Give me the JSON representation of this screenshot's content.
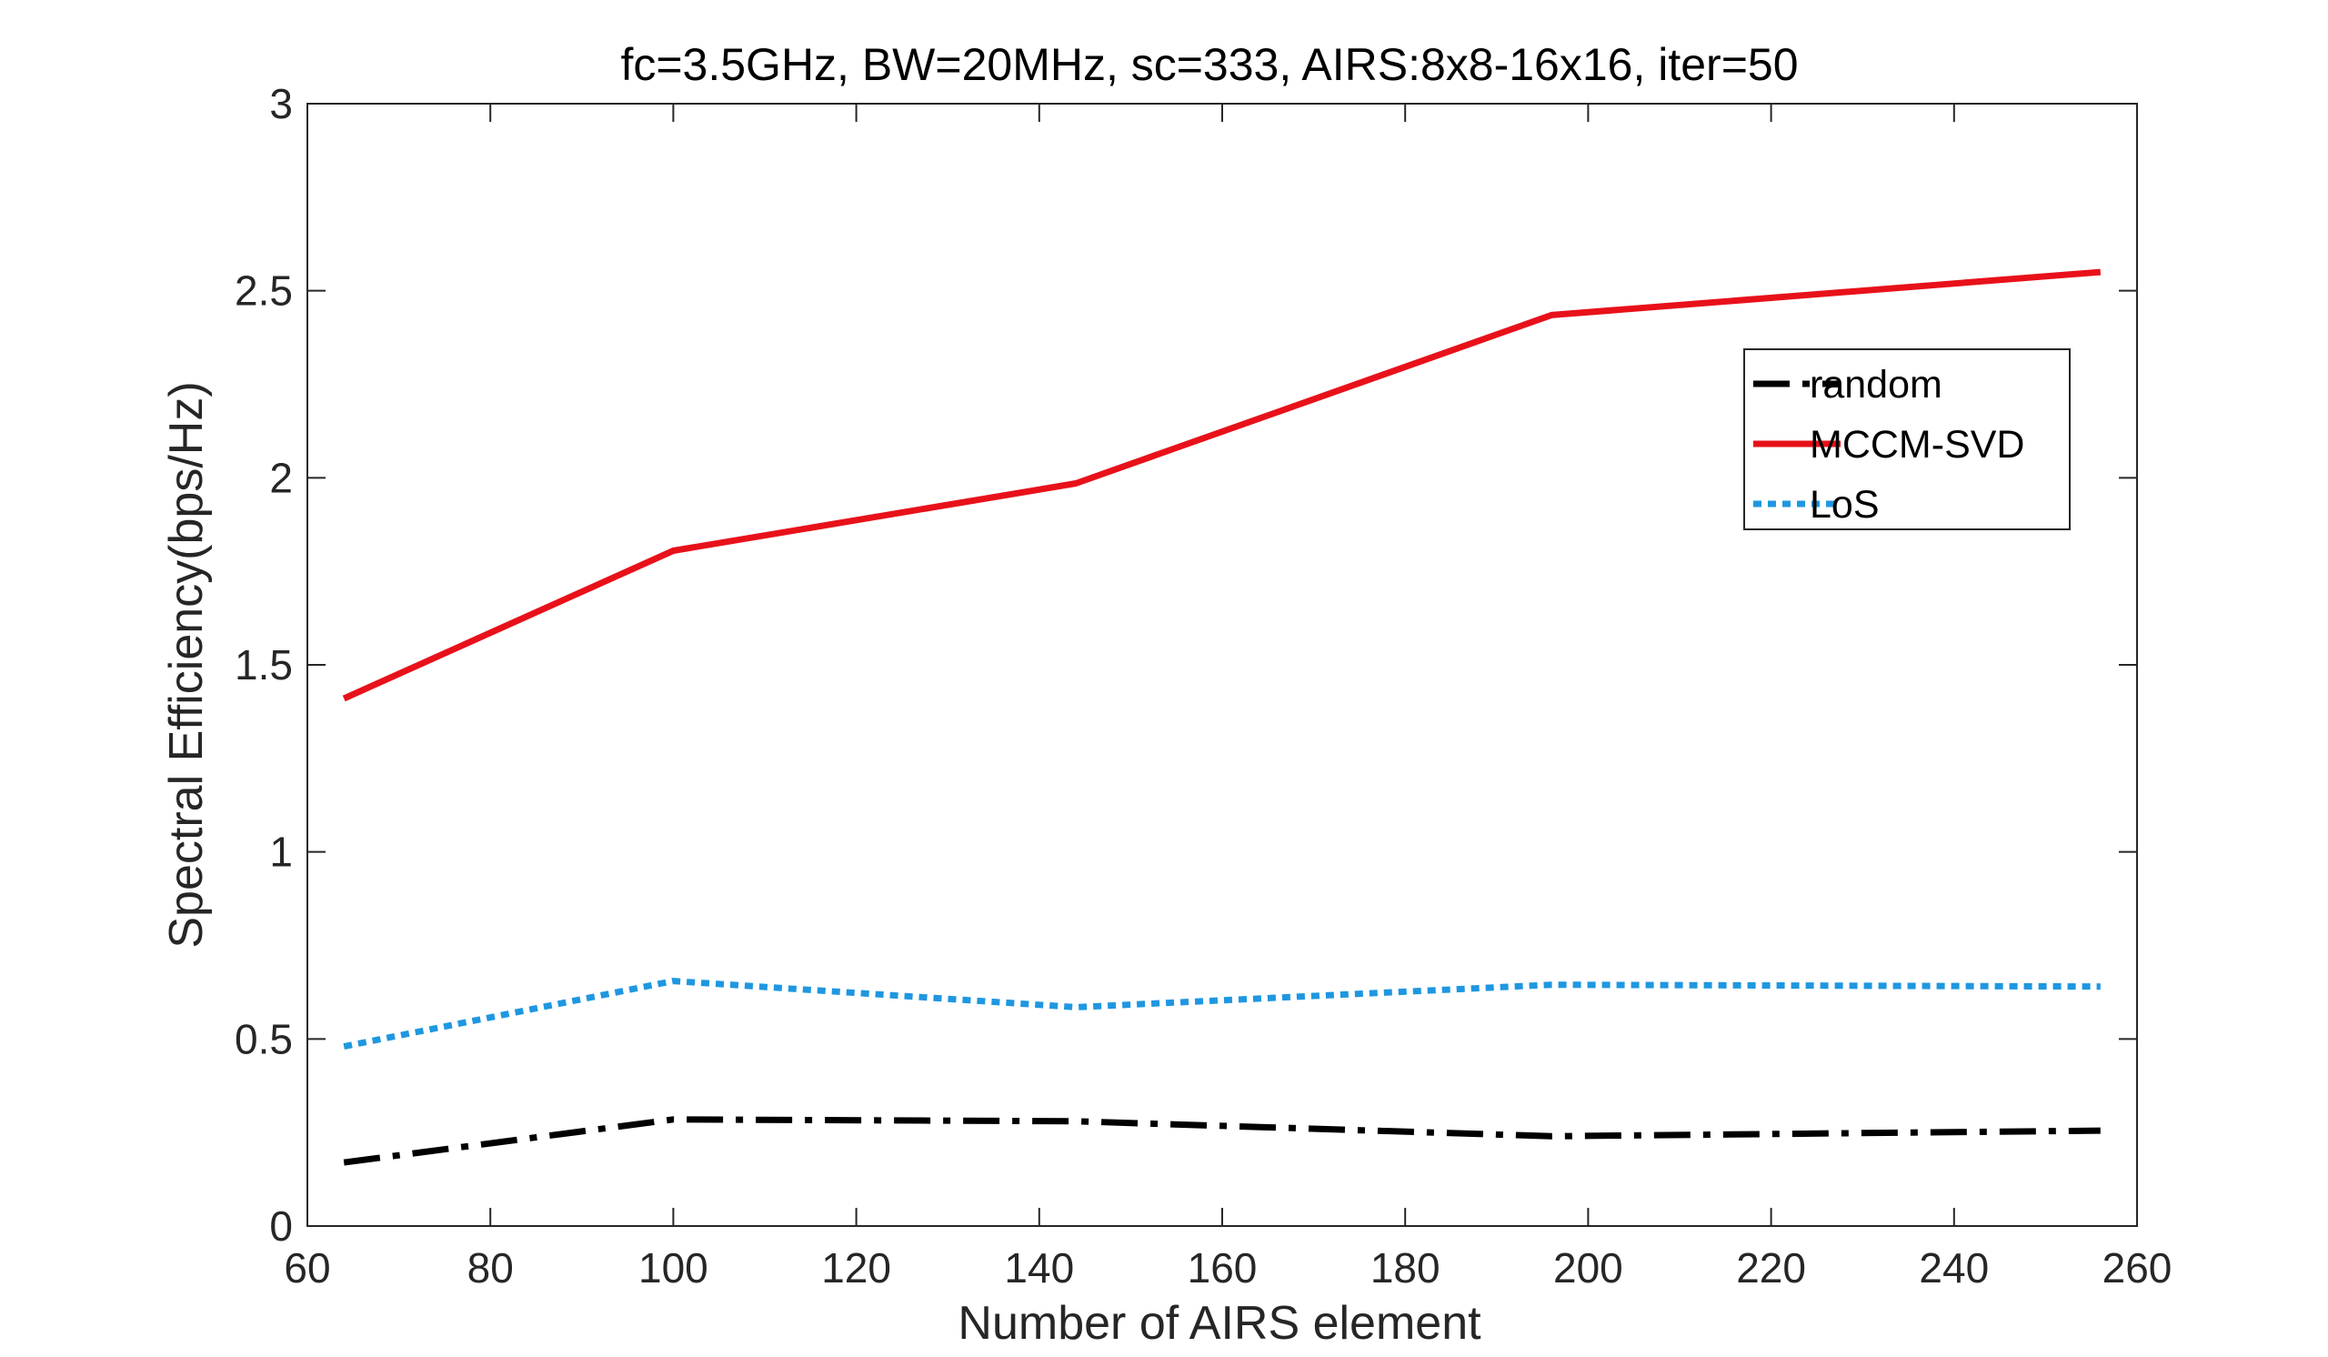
{
  "chart_data": {
    "type": "line",
    "title": "fc=3.5GHz, BW=20MHz, sc=333, AIRS:8x8-16x16, iter=50",
    "xlabel": "Number of AIRS element",
    "ylabel": "Spectral Efficiency(bps/Hz)",
    "xlim": [
      60,
      260
    ],
    "ylim": [
      0,
      3
    ],
    "xticks": [
      60,
      80,
      100,
      120,
      140,
      160,
      180,
      200,
      220,
      240,
      260
    ],
    "yticks": [
      0,
      0.5,
      1,
      1.5,
      2,
      2.5,
      3
    ],
    "ytick_labels": [
      "0",
      "0.5",
      "1",
      "1.5",
      "2",
      "2.5",
      "3"
    ],
    "x": [
      64,
      100,
      144,
      196,
      256
    ],
    "grid": false,
    "legend_position": "top-right",
    "series": [
      {
        "name": "random",
        "values": [
          0.17,
          0.285,
          0.28,
          0.24,
          0.255
        ],
        "color": "#000000",
        "style": "dashdot"
      },
      {
        "name": "MCCM-SVD",
        "values": [
          1.41,
          1.805,
          1.985,
          2.435,
          2.55
        ],
        "color": "#e8111a",
        "style": "solid"
      },
      {
        "name": "LoS",
        "values": [
          0.48,
          0.655,
          0.585,
          0.645,
          0.64
        ],
        "color": "#1f97e0",
        "style": "dotted"
      }
    ]
  }
}
